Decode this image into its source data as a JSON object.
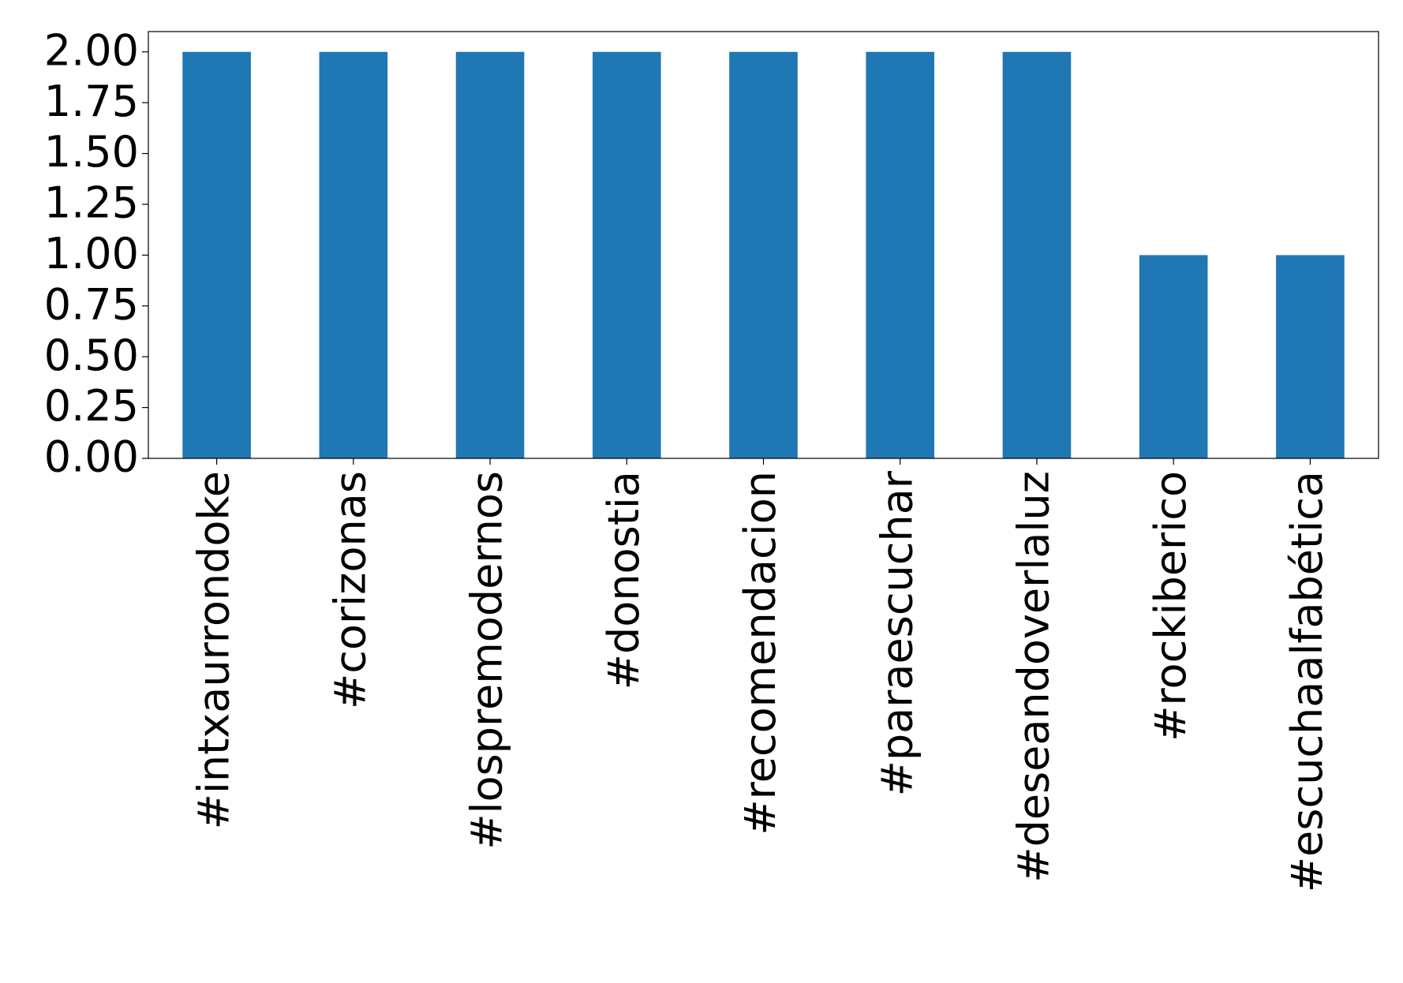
{
  "chart_data": {
    "type": "bar",
    "categories": [
      "#intxaurrondoke",
      "#corizonas",
      "#lospremodernos",
      "#donostia",
      "#recomendacion",
      "#paraescuchar",
      "#deseandoverlaluz",
      "#rockiberico",
      "#escuchaalfabética"
    ],
    "values": [
      2,
      2,
      2,
      2,
      2,
      2,
      2,
      1,
      1
    ],
    "color": "#1f77b4",
    "ylim": [
      0,
      2.1
    ],
    "yticks": [
      {
        "value": 0,
        "label": "0.00"
      },
      {
        "value": 0.25,
        "label": "0.25"
      },
      {
        "value": 0.5,
        "label": "0.50"
      },
      {
        "value": 0.75,
        "label": "0.75"
      },
      {
        "value": 1,
        "label": "1.00"
      },
      {
        "value": 1.25,
        "label": "1.25"
      },
      {
        "value": 1.5,
        "label": "1.50"
      },
      {
        "value": 1.75,
        "label": "1.75"
      },
      {
        "value": 2,
        "label": "2.00"
      }
    ],
    "grid": false
  }
}
